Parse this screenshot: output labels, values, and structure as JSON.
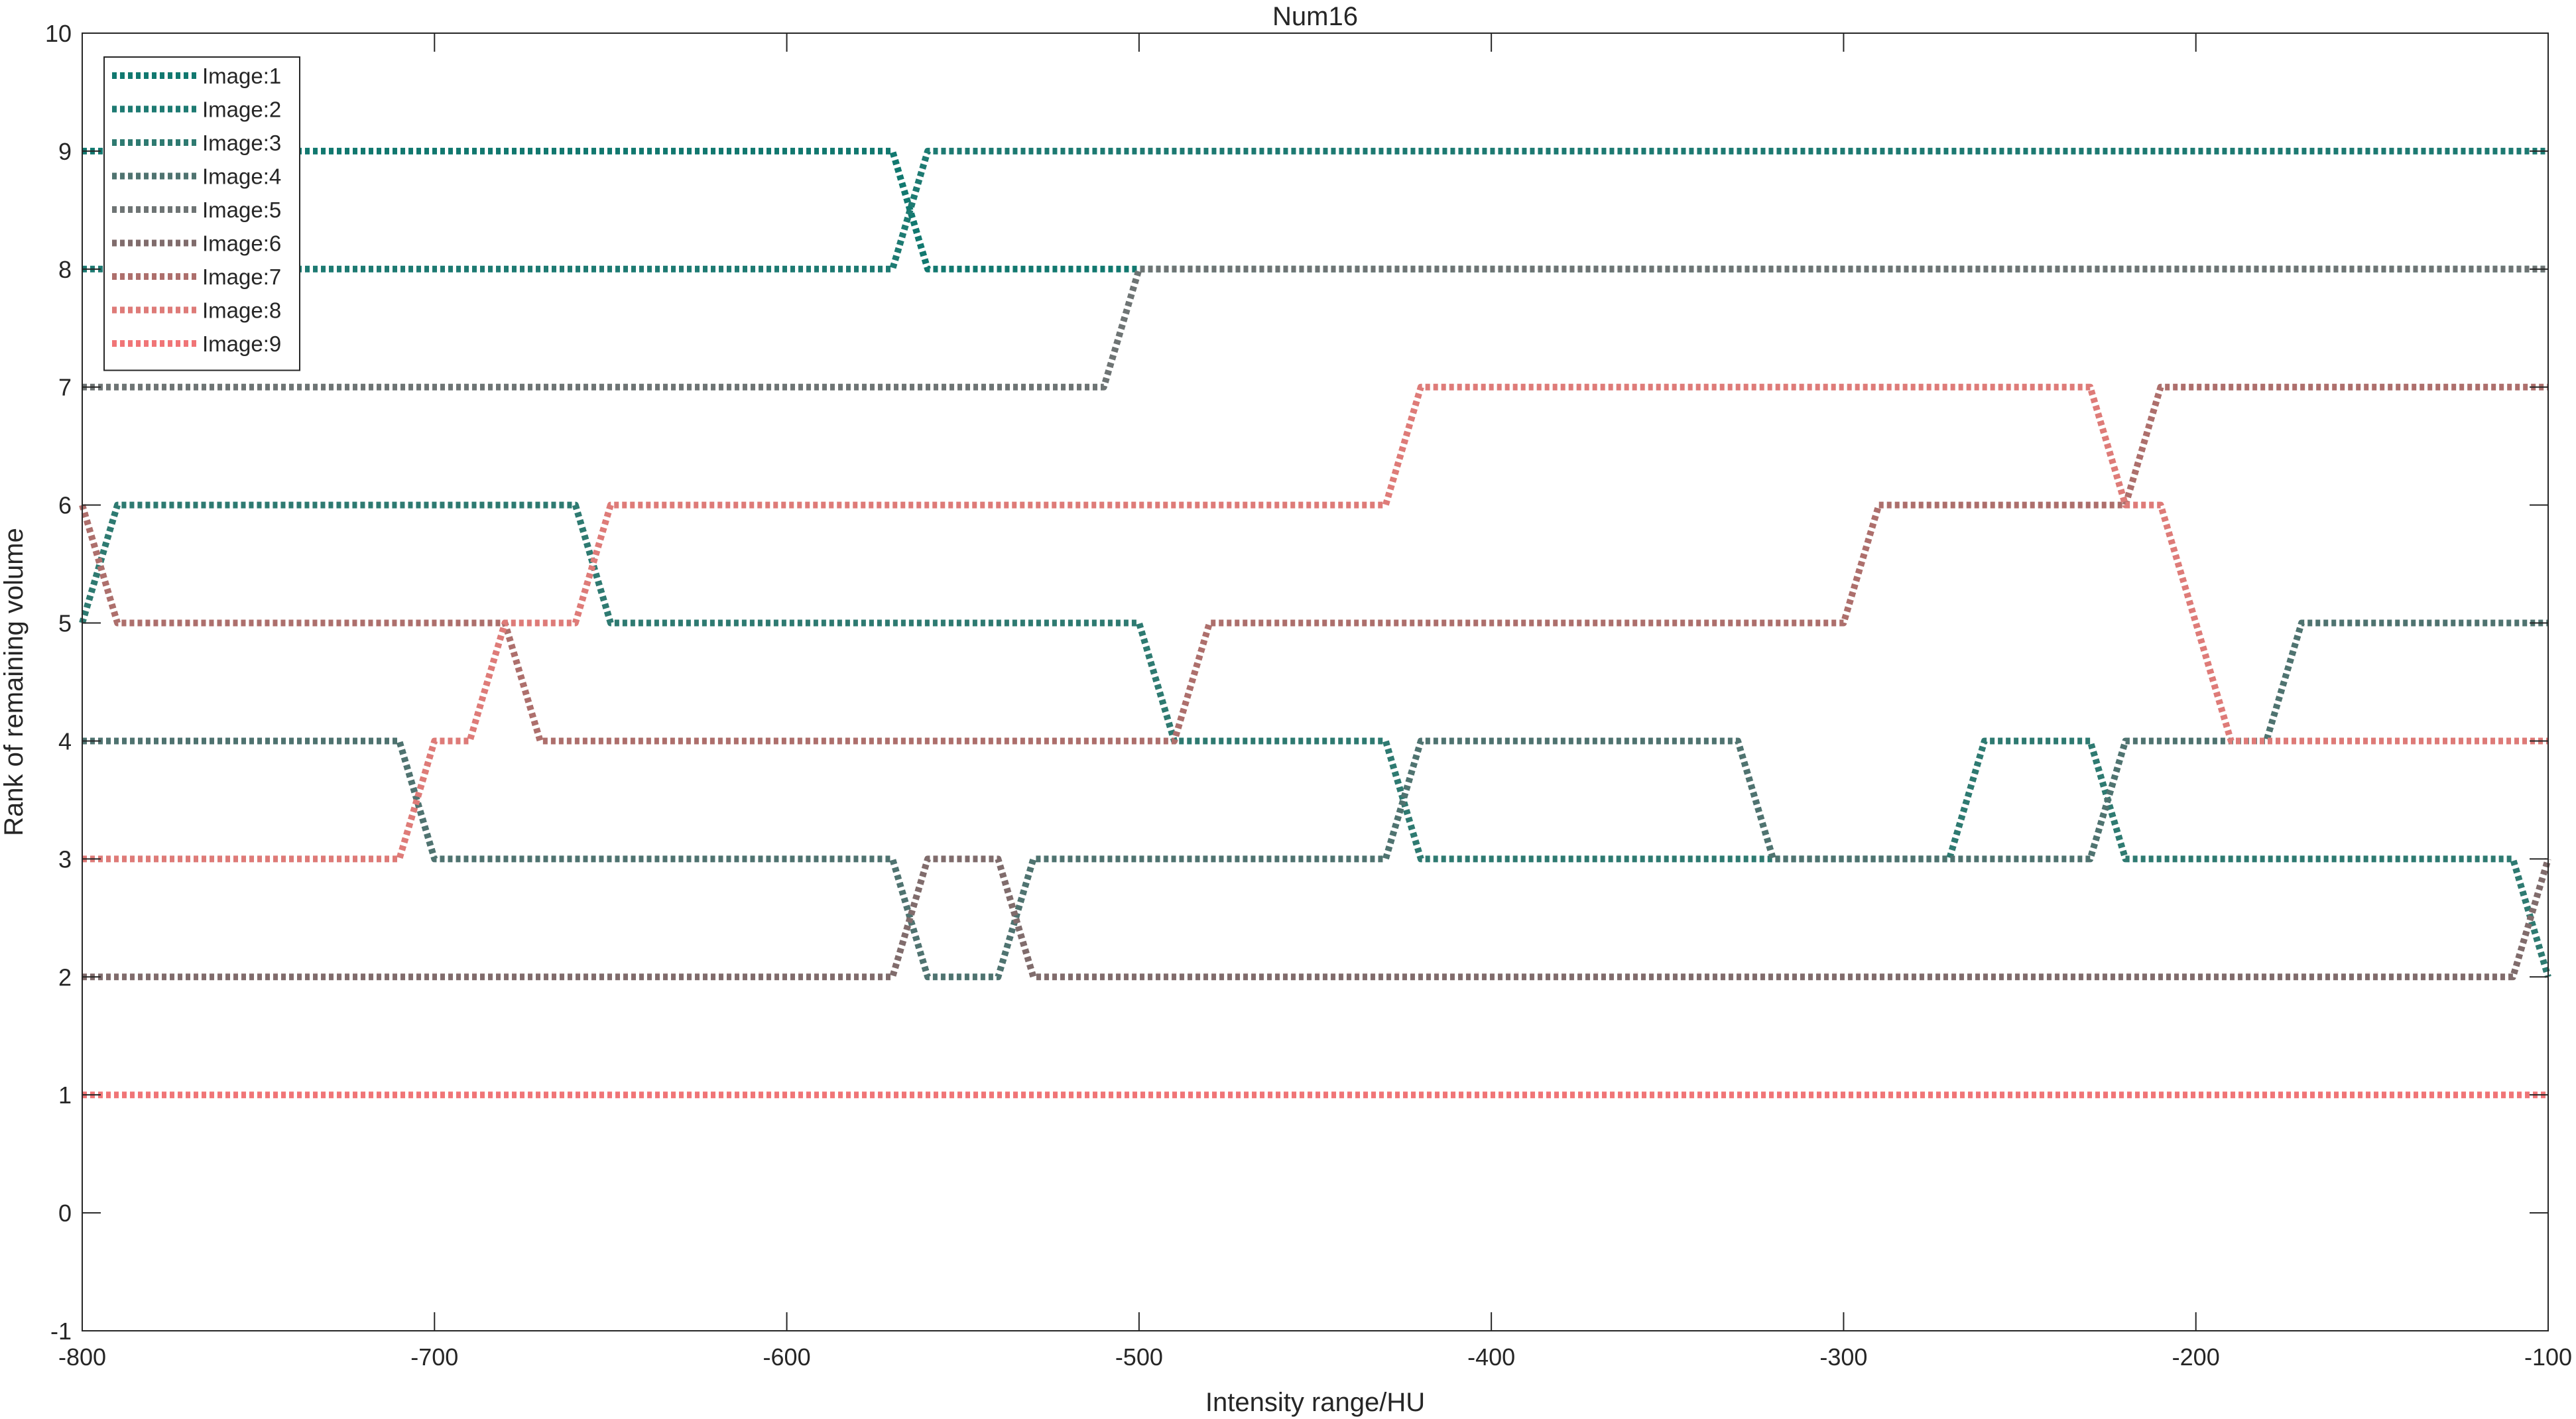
{
  "chart_data": {
    "type": "line",
    "title": "Num16",
    "xlabel": "Intensity range/HU",
    "ylabel": "Rank of remaining volume",
    "xlim": [
      -800,
      -100
    ],
    "ylim": [
      -1,
      10
    ],
    "xticks": [
      "-800",
      "-700",
      "-600",
      "-500",
      "-400",
      "-300",
      "-200",
      "-100"
    ],
    "yticks": [
      "-1",
      "0",
      "1",
      "2",
      "3",
      "4",
      "5",
      "6",
      "7",
      "8",
      "9",
      "10"
    ],
    "grid": false,
    "legend_position": "top-left",
    "line_style": "dotted",
    "x": [
      -800,
      -790,
      -780,
      -770,
      -760,
      -750,
      -740,
      -730,
      -720,
      -710,
      -700,
      -690,
      -680,
      -670,
      -660,
      -650,
      -640,
      -630,
      -620,
      -610,
      -600,
      -590,
      -580,
      -570,
      -560,
      -550,
      -540,
      -530,
      -520,
      -510,
      -500,
      -490,
      -480,
      -470,
      -460,
      -450,
      -440,
      -430,
      -420,
      -410,
      -400,
      -390,
      -380,
      -370,
      -360,
      -350,
      -340,
      -330,
      -320,
      -310,
      -300,
      -290,
      -280,
      -270,
      -260,
      -250,
      -240,
      -230,
      -220,
      -210,
      -200,
      -190,
      -180,
      -170,
      -160,
      -150,
      -140,
      -130,
      -120,
      -110,
      -100
    ],
    "series": [
      {
        "name": "Image:1",
        "color": "#11786f",
        "values": [
          9,
          9,
          9,
          9,
          9,
          9,
          9,
          9,
          9,
          9,
          9,
          9,
          9,
          9,
          9,
          9,
          9,
          9,
          9,
          9,
          9,
          9,
          9,
          9,
          8,
          8,
          8,
          8,
          8,
          8,
          8,
          8,
          8,
          8,
          8,
          8,
          8,
          8,
          8,
          8,
          8,
          8,
          8,
          8,
          8,
          8,
          8,
          8,
          8,
          8,
          8,
          8,
          8,
          8,
          8,
          8,
          8,
          8,
          8,
          8,
          8,
          8,
          8,
          8,
          8,
          8,
          8,
          8,
          8,
          8,
          8
        ]
      },
      {
        "name": "Image:2",
        "color": "#1d7a72",
        "values": [
          8,
          8,
          8,
          8,
          8,
          8,
          8,
          8,
          8,
          8,
          8,
          8,
          8,
          8,
          8,
          8,
          8,
          8,
          8,
          8,
          8,
          8,
          8,
          8,
          9,
          9,
          9,
          9,
          9,
          9,
          9,
          9,
          9,
          9,
          9,
          9,
          9,
          9,
          9,
          9,
          9,
          9,
          9,
          9,
          9,
          9,
          9,
          9,
          9,
          9,
          9,
          9,
          9,
          9,
          9,
          9,
          9,
          9,
          9,
          9,
          9,
          9,
          9,
          9,
          9,
          9,
          9,
          9,
          9,
          9,
          9
        ]
      },
      {
        "name": "Image:3",
        "color": "#2e7a71",
        "values": [
          5,
          6,
          6,
          6,
          6,
          6,
          6,
          6,
          6,
          6,
          6,
          6,
          6,
          6,
          6,
          5,
          5,
          5,
          5,
          5,
          5,
          5,
          5,
          5,
          5,
          5,
          5,
          5,
          5,
          5,
          5,
          4,
          4,
          4,
          4,
          4,
          4,
          4,
          3,
          3,
          3,
          3,
          3,
          3,
          3,
          3,
          3,
          3,
          3,
          3,
          3,
          3,
          3,
          3,
          4,
          4,
          4,
          4,
          3,
          3,
          3,
          3,
          3,
          3,
          3,
          3,
          3,
          3,
          3,
          3,
          2
        ]
      },
      {
        "name": "Image:4",
        "color": "#4f7370",
        "values": [
          4,
          4,
          4,
          4,
          4,
          4,
          4,
          4,
          4,
          4,
          3,
          3,
          3,
          3,
          3,
          3,
          3,
          3,
          3,
          3,
          3,
          3,
          3,
          3,
          2,
          2,
          2,
          3,
          3,
          3,
          3,
          3,
          3,
          3,
          3,
          3,
          3,
          3,
          4,
          4,
          4,
          4,
          4,
          4,
          4,
          4,
          4,
          4,
          3,
          3,
          3,
          3,
          3,
          3,
          3,
          3,
          3,
          3,
          4,
          4,
          4,
          4,
          4,
          5,
          5,
          5,
          5,
          5,
          5,
          5,
          5
        ]
      },
      {
        "name": "Image:5",
        "color": "#6e7474",
        "values": [
          7,
          7,
          7,
          7,
          7,
          7,
          7,
          7,
          7,
          7,
          7,
          7,
          7,
          7,
          7,
          7,
          7,
          7,
          7,
          7,
          7,
          7,
          7,
          7,
          7,
          7,
          7,
          7,
          7,
          7,
          8,
          8,
          8,
          8,
          8,
          8,
          8,
          8,
          8,
          8,
          8,
          8,
          8,
          8,
          8,
          8,
          8,
          8,
          8,
          8,
          8,
          8,
          8,
          8,
          8,
          8,
          8,
          8,
          8,
          8,
          8,
          8,
          8,
          8,
          8,
          8,
          8,
          8,
          8,
          8,
          8
        ]
      },
      {
        "name": "Image:6",
        "color": "#806c6c",
        "values": [
          2,
          2,
          2,
          2,
          2,
          2,
          2,
          2,
          2,
          2,
          2,
          2,
          2,
          2,
          2,
          2,
          2,
          2,
          2,
          2,
          2,
          2,
          2,
          2,
          3,
          3,
          3,
          2,
          2,
          2,
          2,
          2,
          2,
          2,
          2,
          2,
          2,
          2,
          2,
          2,
          2,
          2,
          2,
          2,
          2,
          2,
          2,
          2,
          2,
          2,
          2,
          2,
          2,
          2,
          2,
          2,
          2,
          2,
          2,
          2,
          2,
          2,
          2,
          2,
          2,
          2,
          2,
          2,
          2,
          2,
          3
        ]
      },
      {
        "name": "Image:7",
        "color": "#ad6f6c",
        "values": [
          6,
          5,
          5,
          5,
          5,
          5,
          5,
          5,
          5,
          5,
          5,
          5,
          5,
          4,
          4,
          4,
          4,
          4,
          4,
          4,
          4,
          4,
          4,
          4,
          4,
          4,
          4,
          4,
          4,
          4,
          4,
          4,
          5,
          5,
          5,
          5,
          5,
          5,
          5,
          5,
          5,
          5,
          5,
          5,
          5,
          5,
          5,
          5,
          5,
          5,
          5,
          6,
          6,
          6,
          6,
          6,
          6,
          6,
          6,
          7,
          7,
          7,
          7,
          7,
          7,
          7,
          7,
          7,
          7,
          7,
          7
        ]
      },
      {
        "name": "Image:8",
        "color": "#de7b78",
        "values": [
          3,
          3,
          3,
          3,
          3,
          3,
          3,
          3,
          3,
          3,
          4,
          4,
          5,
          5,
          5,
          6,
          6,
          6,
          6,
          6,
          6,
          6,
          6,
          6,
          6,
          6,
          6,
          6,
          6,
          6,
          6,
          6,
          6,
          6,
          6,
          6,
          6,
          6,
          7,
          7,
          7,
          7,
          7,
          7,
          7,
          7,
          7,
          7,
          7,
          7,
          7,
          7,
          7,
          7,
          7,
          7,
          7,
          7,
          6,
          6,
          5,
          4,
          4,
          4,
          4,
          4,
          4,
          4,
          4,
          4,
          4
        ]
      },
      {
        "name": "Image:9",
        "color": "#f07577",
        "values": [
          1,
          1,
          1,
          1,
          1,
          1,
          1,
          1,
          1,
          1,
          1,
          1,
          1,
          1,
          1,
          1,
          1,
          1,
          1,
          1,
          1,
          1,
          1,
          1,
          1,
          1,
          1,
          1,
          1,
          1,
          1,
          1,
          1,
          1,
          1,
          1,
          1,
          1,
          1,
          1,
          1,
          1,
          1,
          1,
          1,
          1,
          1,
          1,
          1,
          1,
          1,
          1,
          1,
          1,
          1,
          1,
          1,
          1,
          1,
          1,
          1,
          1,
          1,
          1,
          1,
          1,
          1,
          1,
          1,
          1,
          1
        ]
      }
    ]
  }
}
